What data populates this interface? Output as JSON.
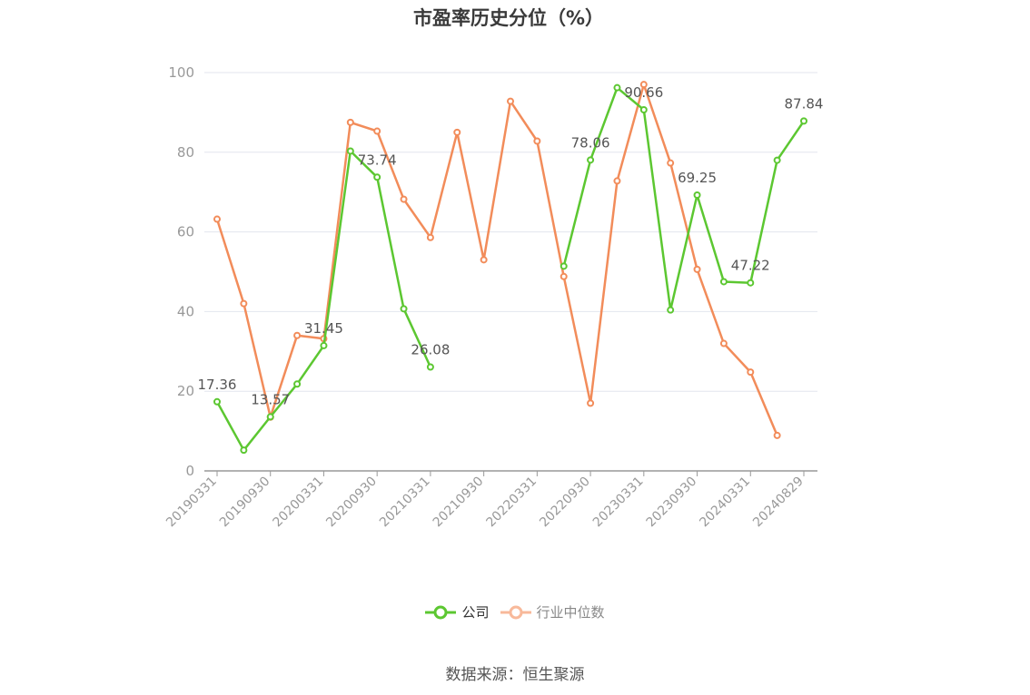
{
  "title": "市盈率历史分位（%）",
  "source": "数据来源：恒生聚源",
  "colors": {
    "company": "#5cc731",
    "industry": "#f28c5a",
    "industry_legend": "#f8b99a",
    "grid": "#e3e6ee",
    "axis": "#999999",
    "label": "#555555"
  },
  "chart_data": {
    "type": "line",
    "title": "市盈率历史分位（%）",
    "ylim": [
      0,
      100
    ],
    "yticks": [
      0,
      20,
      40,
      60,
      80,
      100
    ],
    "x_tick_labels": [
      "20190331",
      "20190930",
      "20200331",
      "20200930",
      "20210331",
      "20210930",
      "20220331",
      "20220930",
      "20230331",
      "20230930",
      "20240331",
      "20240829"
    ],
    "x": [
      "20190331",
      "20190630",
      "20190930",
      "20191231",
      "20200331",
      "20200630",
      "20200930",
      "20201231",
      "20210331",
      "20210630",
      "20210930",
      "20211231",
      "20220331",
      "20220630",
      "20220930",
      "20221231",
      "20230331",
      "20230630",
      "20230930",
      "20231231",
      "20240331",
      "20240630",
      "20240829"
    ],
    "grid": true,
    "legend_position": "bottom",
    "series": [
      {
        "name": "公司",
        "values": [
          17.36,
          5.2,
          13.57,
          21.8,
          31.45,
          80.3,
          73.74,
          40.7,
          26.08,
          null,
          null,
          null,
          null,
          51.4,
          78.06,
          96.2,
          90.66,
          40.4,
          69.25,
          47.5,
          47.22,
          78.0,
          87.84
        ],
        "labeled_points": [
          0,
          2,
          4,
          6,
          8,
          14,
          16,
          18,
          20,
          22
        ]
      },
      {
        "name": "行业中位数",
        "values": [
          63.2,
          42.0,
          13.5,
          34.0,
          33.2,
          87.5,
          85.3,
          68.2,
          58.6,
          85.0,
          53.0,
          92.8,
          82.8,
          48.8,
          17.0,
          72.8,
          97.0,
          77.3,
          50.6,
          32.0,
          24.8,
          8.9,
          null
        ]
      }
    ]
  }
}
